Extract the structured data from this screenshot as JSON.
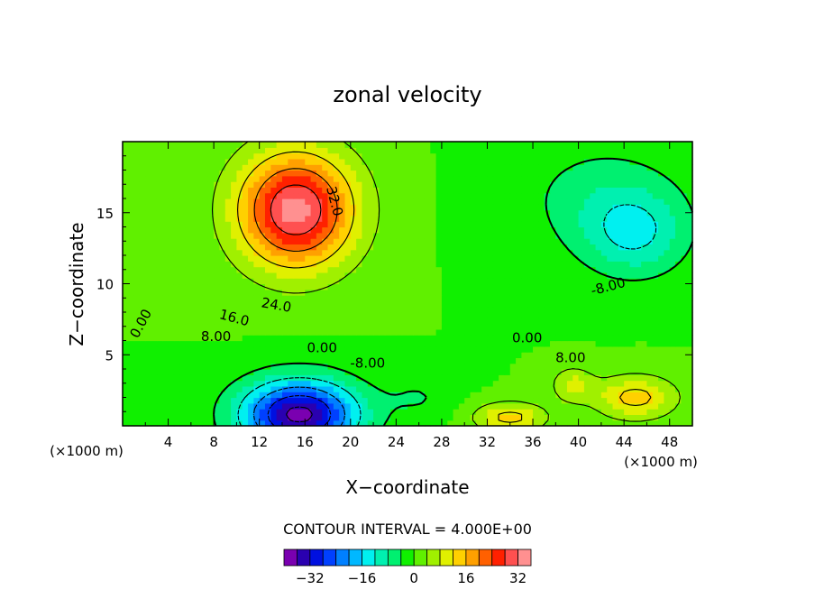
{
  "chart_data": {
    "type": "heatmap",
    "title": "zonal velocity",
    "xlabel": "X−coordinate",
    "ylabel": "Z−coordinate",
    "x_unit_left": "(×1000 m)",
    "x_unit_right": "(×1000 m)",
    "xlim": [
      0,
      50
    ],
    "ylim": [
      0,
      20
    ],
    "x_ticks": [
      4,
      8,
      12,
      16,
      20,
      24,
      28,
      32,
      36,
      40,
      44,
      48
    ],
    "y_ticks": [
      5,
      10,
      15
    ],
    "contour_interval_text": "CONTOUR INTERVAL = 4.000E+00",
    "contour_labels": [
      {
        "text": "32.0",
        "x": 18.6,
        "y": 15.8,
        "rot": 75
      },
      {
        "text": "24.0",
        "x": 13.5,
        "y": 8.5,
        "rot": 10
      },
      {
        "text": "16.0",
        "x": 9.8,
        "y": 7.6,
        "rot": 15
      },
      {
        "text": "8.00",
        "x": 8.2,
        "y": 6.3,
        "rot": 0
      },
      {
        "text": "0.00",
        "x": 1.6,
        "y": 7.2,
        "rot": -62
      },
      {
        "text": "0.00",
        "x": 17.5,
        "y": 5.5,
        "rot": 0
      },
      {
        "text": "-8.00",
        "x": 21.5,
        "y": 4.4,
        "rot": 0
      },
      {
        "text": "0.00",
        "x": 35.5,
        "y": 6.2,
        "rot": 0
      },
      {
        "text": "8.00",
        "x": 39.3,
        "y": 4.8,
        "rot": 0
      },
      {
        "text": "-8.00",
        "x": 42.6,
        "y": 9.8,
        "rot": -15
      }
    ],
    "fields": [
      {
        "x": 15.2,
        "y": 15.2,
        "amp": 34,
        "sx": 5.0,
        "sy": 4.0
      },
      {
        "x": 15.5,
        "y": 0.8,
        "amp": -38,
        "sx": 5.0,
        "sy": 2.4
      },
      {
        "x": 45.0,
        "y": 13.5,
        "amp": -11,
        "sx": 4.5,
        "sy": 3.0
      },
      {
        "x": 45.0,
        "y": 2.0,
        "amp": 14,
        "sx": 3.5,
        "sy": 1.5
      },
      {
        "x": 34.0,
        "y": 0.6,
        "amp": 14,
        "sx": 3.0,
        "sy": 1.0
      },
      {
        "x": 39.5,
        "y": 2.9,
        "amp": 9,
        "sx": 1.8,
        "sy": 1.2
      },
      {
        "x": 42.0,
        "y": 16.0,
        "amp": -6,
        "sx": 7.0,
        "sy": 4.0
      },
      {
        "x": 26.0,
        "y": 2.0,
        "amp": -4,
        "sx": 3.0,
        "sy": 1.5
      }
    ],
    "colorbar": {
      "colors": [
        "#7a00b0",
        "#2a00b0",
        "#0010e0",
        "#0040ff",
        "#0080ff",
        "#00b8ff",
        "#00f0f0",
        "#00f0b0",
        "#00f070",
        "#10f000",
        "#60f000",
        "#a0f000",
        "#e0f000",
        "#ffd000",
        "#ffa000",
        "#ff6000",
        "#ff2000",
        "#ff5050",
        "#ff9090"
      ],
      "boundaries": [
        -36,
        -32,
        -28,
        -24,
        -20,
        -16,
        -12,
        -8,
        -4,
        0,
        4,
        8,
        12,
        16,
        20,
        24,
        28,
        32,
        36
      ],
      "tick_labels": [
        "−32",
        "−16",
        "0",
        "16",
        "32"
      ],
      "tick_values": [
        -32,
        -16,
        0,
        16,
        32
      ]
    }
  }
}
